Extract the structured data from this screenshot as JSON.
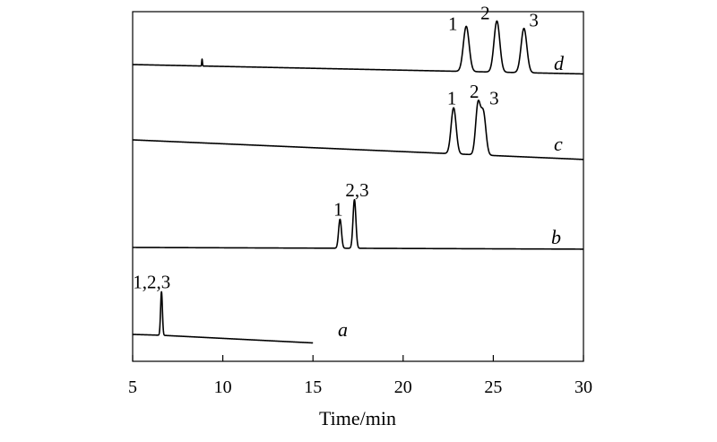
{
  "chart_data": {
    "type": "line",
    "title": "",
    "xlabel": "Time/min",
    "ylabel": "",
    "xlim": [
      5,
      30
    ],
    "x_ticks": [
      "5",
      "10",
      "15",
      "20",
      "25",
      "30"
    ],
    "grid": false,
    "legend": "none",
    "series": [
      {
        "name": "a",
        "baseline": [
          [
            5,
            0.0
          ],
          [
            6.6,
            -0.05
          ],
          [
            15,
            -0.5
          ]
        ],
        "peaks": [
          {
            "t": 6.6,
            "height": 2.55,
            "width": 0.05,
            "label": "1,2,3"
          }
        ]
      },
      {
        "name": "b",
        "baseline": [
          [
            5,
            0.0
          ],
          [
            30,
            -0.1
          ]
        ],
        "peaks": [
          {
            "t": 16.5,
            "height": 1.7,
            "width": 0.08,
            "label": "1"
          },
          {
            "t": 17.3,
            "height": 2.85,
            "width": 0.08,
            "label": "2,3"
          }
        ]
      },
      {
        "name": "c",
        "baseline": [
          [
            5,
            0.0
          ],
          [
            30,
            -1.15
          ]
        ],
        "peaks": [
          {
            "t": 22.8,
            "height": 2.7,
            "width": 0.14,
            "label": "1"
          },
          {
            "t": 24.15,
            "height": 2.9,
            "width": 0.13,
            "label": "2"
          },
          {
            "t": 24.45,
            "height": 2.45,
            "width": 0.14,
            "label": "3"
          }
        ]
      },
      {
        "name": "d",
        "baseline": [
          [
            5,
            0.0
          ],
          [
            30,
            -0.55
          ]
        ],
        "peaks": [
          {
            "t": 8.85,
            "height": 0.4,
            "width": 0.02,
            "label": ""
          },
          {
            "t": 23.5,
            "height": 2.65,
            "width": 0.16,
            "label": "1"
          },
          {
            "t": 25.2,
            "height": 3.0,
            "width": 0.16,
            "label": "2"
          },
          {
            "t": 26.7,
            "height": 2.6,
            "width": 0.16,
            "label": "3"
          }
        ]
      }
    ]
  }
}
